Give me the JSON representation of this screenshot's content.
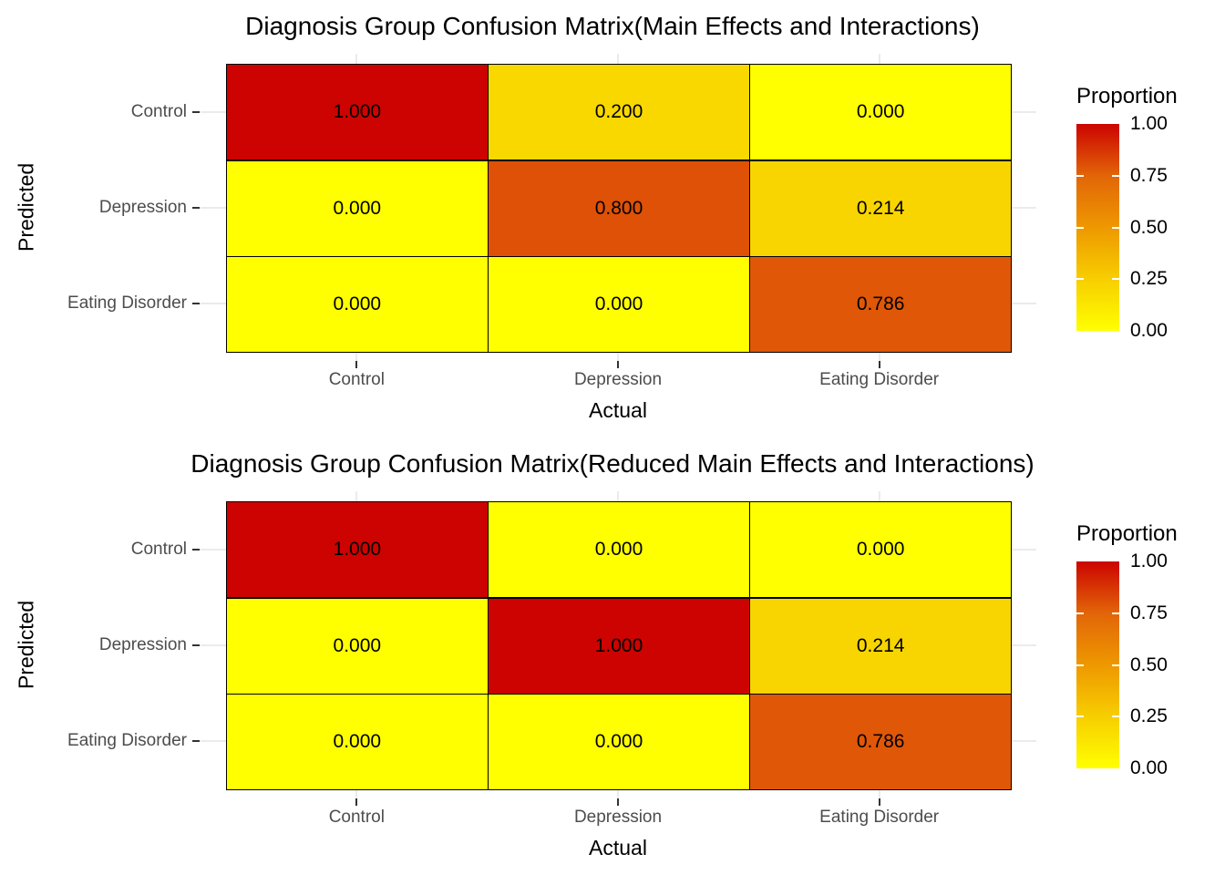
{
  "colors": {
    "background": "#ffffff",
    "gridline": "#ebebeb",
    "axis_tick": "#333333",
    "axis_text": "#4d4d4d",
    "title_text": "#000000",
    "cell_border": "#000000"
  },
  "colormap": {
    "stops": [
      {
        "t": 0.0,
        "color": "#ffff00"
      },
      {
        "t": 0.25,
        "color": "#f7ce00"
      },
      {
        "t": 0.5,
        "color": "#ee9800"
      },
      {
        "t": 0.75,
        "color": "#e26508"
      },
      {
        "t": 1.0,
        "color": "#cc0300"
      }
    ]
  },
  "chart_data": [
    {
      "type": "heatmap",
      "title": "Diagnosis Group Confusion Matrix(Main Effects and Interactions)",
      "xlabel": "Actual",
      "ylabel": "Predicted",
      "x_categories": [
        "Control",
        "Depression",
        "Eating Disorder"
      ],
      "y_categories": [
        "Control",
        "Depression",
        "Eating Disorder"
      ],
      "values": [
        [
          1.0,
          0.2,
          0.0
        ],
        [
          0.0,
          0.8,
          0.214
        ],
        [
          0.0,
          0.0,
          0.786
        ]
      ],
      "cell_labels": [
        [
          "1.000",
          "0.200",
          "0.000"
        ],
        [
          "0.000",
          "0.800",
          "0.214"
        ],
        [
          "0.000",
          "0.000",
          "0.786"
        ]
      ],
      "grid": true,
      "legend": {
        "title": "Proportion",
        "position": "right",
        "range": [
          0,
          1
        ],
        "breaks": [
          1.0,
          0.75,
          0.5,
          0.25,
          0.0
        ],
        "tick_labels": [
          "1.00",
          "0.75",
          "0.50",
          "0.25",
          "0.00"
        ]
      }
    },
    {
      "type": "heatmap",
      "title": "Diagnosis Group Confusion Matrix(Reduced Main Effects and Interactions)",
      "xlabel": "Actual",
      "ylabel": "Predicted",
      "x_categories": [
        "Control",
        "Depression",
        "Eating Disorder"
      ],
      "y_categories": [
        "Control",
        "Depression",
        "Eating Disorder"
      ],
      "values": [
        [
          1.0,
          0.0,
          0.0
        ],
        [
          0.0,
          1.0,
          0.214
        ],
        [
          0.0,
          0.0,
          0.786
        ]
      ],
      "cell_labels": [
        [
          "1.000",
          "0.000",
          "0.000"
        ],
        [
          "0.000",
          "1.000",
          "0.214"
        ],
        [
          "0.000",
          "0.000",
          "0.786"
        ]
      ],
      "grid": true,
      "legend": {
        "title": "Proportion",
        "position": "right",
        "range": [
          0,
          1
        ],
        "breaks": [
          1.0,
          0.75,
          0.5,
          0.25,
          0.0
        ],
        "tick_labels": [
          "1.00",
          "0.75",
          "0.50",
          "0.25",
          "0.00"
        ]
      }
    }
  ]
}
